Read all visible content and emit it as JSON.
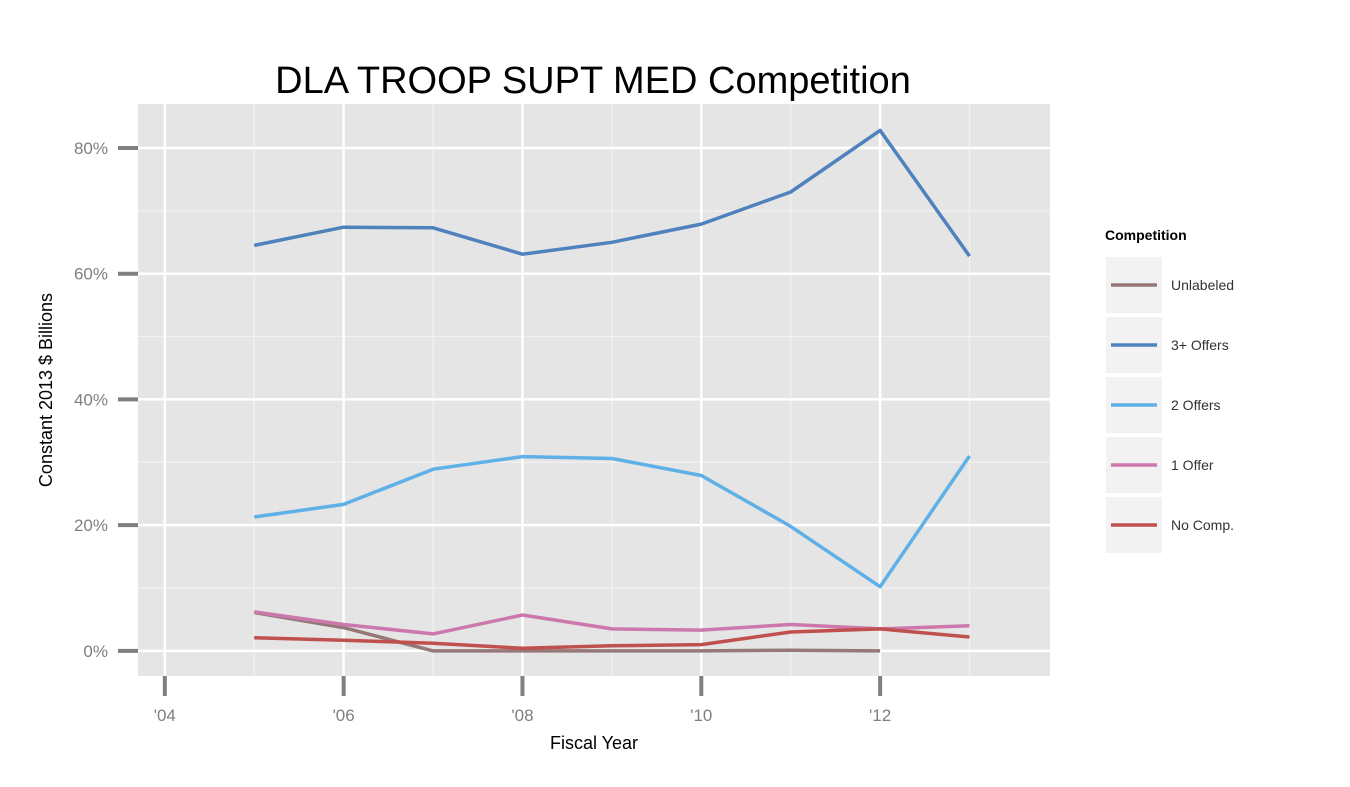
{
  "chart_data": {
    "type": "line",
    "title": "DLA TROOP SUPT MED Competition",
    "xlabel": "Fiscal Year",
    "ylabel": "Constant 2013 $ Billions",
    "xlim": [
      2003.7,
      2013.9
    ],
    "ylim": [
      -0.04,
      0.87
    ],
    "x_ticks": [
      2004,
      2006,
      2008,
      2010,
      2012
    ],
    "x_tick_labels": [
      "'04",
      "'06",
      "'08",
      "'10",
      "'12"
    ],
    "y_ticks": [
      0,
      0.2,
      0.4,
      0.6,
      0.8
    ],
    "y_tick_labels": [
      "0%",
      "20%",
      "40%",
      "60%",
      "80%"
    ],
    "grid": true,
    "legend": {
      "title": "Competition",
      "position": "right"
    },
    "series": [
      {
        "name": "Unlabeled",
        "color": "#967878",
        "x": [
          2005,
          2006,
          2007,
          2008,
          2009,
          2010,
          2011,
          2012
        ],
        "values": [
          0.061,
          0.037,
          0.0,
          0.0,
          0.0,
          0.0,
          0.001,
          0.0
        ]
      },
      {
        "name": "3+ Offers",
        "color": "#4f81bd",
        "x": [
          2005,
          2006,
          2007,
          2008,
          2009,
          2010,
          2011,
          2012,
          2013
        ],
        "values": [
          0.645,
          0.674,
          0.673,
          0.631,
          0.65,
          0.679,
          0.73,
          0.828,
          0.628
        ]
      },
      {
        "name": "2 Offers",
        "color": "#60b0e8",
        "x": [
          2005,
          2006,
          2007,
          2008,
          2009,
          2010,
          2011,
          2012,
          2013
        ],
        "values": [
          0.213,
          0.233,
          0.289,
          0.309,
          0.306,
          0.279,
          0.198,
          0.102,
          0.31
        ]
      },
      {
        "name": "1 Offer",
        "color": "#cc78ac",
        "x": [
          2005,
          2006,
          2007,
          2008,
          2009,
          2010,
          2011,
          2012,
          2013
        ],
        "values": [
          0.062,
          0.042,
          0.027,
          0.057,
          0.035,
          0.033,
          0.042,
          0.035,
          0.04
        ]
      },
      {
        "name": "No Comp.",
        "color": "#c0504d",
        "x": [
          2005,
          2006,
          2007,
          2008,
          2009,
          2010,
          2011,
          2012,
          2013
        ],
        "values": [
          0.021,
          0.017,
          0.012,
          0.004,
          0.008,
          0.01,
          0.03,
          0.035,
          0.022
        ]
      }
    ]
  }
}
